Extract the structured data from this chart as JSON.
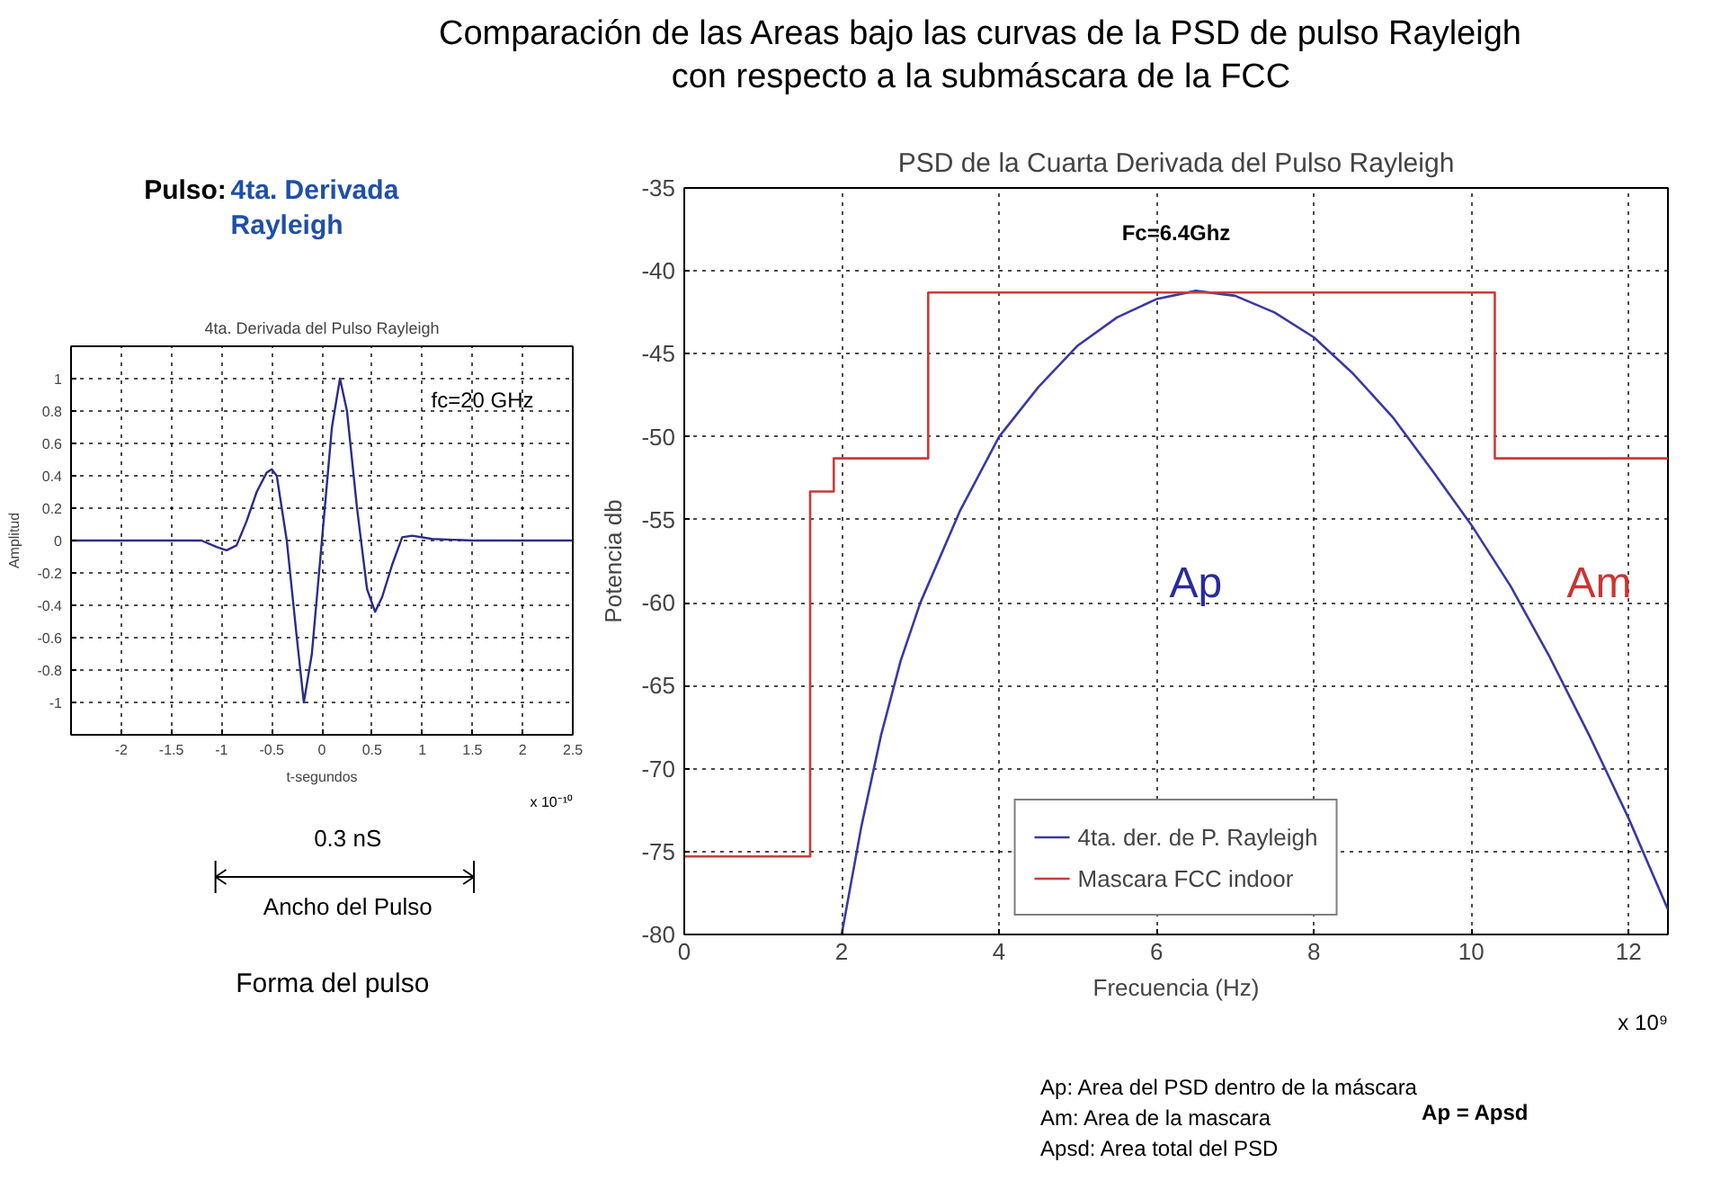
{
  "chart_data": [
    {
      "type": "other",
      "title": "Comparación de las Areas bajo las curvas de la PSD de pulso Rayleigh\ncon respecto a la submáscara de la FCC"
    },
    {
      "type": "other",
      "annotations": [
        "Pulso:",
        "4ta. Derivada\nRayleigh"
      ]
    },
    {
      "type": "line",
      "title": "4ta. Derivada del Pulso Rayleigh",
      "xlabel": "t-segundos",
      "ylabel": "Amplitud",
      "xlim": [
        -2.5,
        2.5
      ],
      "xticks": [
        -2,
        -1.5,
        -1,
        -0.5,
        0,
        0.5,
        1,
        1.5,
        2,
        2.5
      ],
      "ylim": [
        -1.2,
        1.2
      ],
      "yticks": [
        -1,
        -0.8,
        -0.6,
        -0.4,
        -0.2,
        0,
        0.2,
        0.4,
        0.6,
        0.8,
        1
      ],
      "grid": true,
      "annotations": [
        "fc=20 GHz",
        "x 10⁻¹⁰"
      ],
      "series": [
        {
          "color": "#2c2c88",
          "x": [
            -2.5,
            -1.2,
            -1.05,
            -0.95,
            -0.85,
            -0.75,
            -0.65,
            -0.55,
            -0.5,
            -0.45,
            -0.35,
            -0.25,
            -0.18,
            -0.1,
            0,
            0.1,
            0.18,
            0.25,
            0.35,
            0.45,
            0.53,
            0.6,
            0.7,
            0.8,
            0.9,
            1.1,
            1.5,
            2.5
          ],
          "values": [
            0,
            0,
            -0.04,
            -0.06,
            -0.03,
            0.12,
            0.3,
            0.42,
            0.44,
            0.4,
            0.0,
            -0.6,
            -1.0,
            -0.7,
            0,
            0.7,
            1.0,
            0.8,
            0.2,
            -0.3,
            -0.44,
            -0.35,
            -0.15,
            0.02,
            0.03,
            0.01,
            0,
            0
          ]
        }
      ]
    },
    {
      "type": "other",
      "annotations": [
        "0.3 nS",
        "Ancho del Pulso",
        "Forma del pulso"
      ]
    },
    {
      "type": "line",
      "title": "PSD de la Cuarta Derivada del Pulso Rayleigh",
      "xlabel": "Frecuencia (Hz)",
      "ylabel": "Potencia db",
      "xlim": [
        0,
        12.5
      ],
      "xticks": [
        0,
        2,
        4,
        6,
        8,
        10,
        12
      ],
      "ylim": [
        -80,
        -35
      ],
      "yticks": [
        -80,
        -75,
        -70,
        -65,
        -60,
        -55,
        -50,
        -45,
        -40,
        -35
      ],
      "grid": true,
      "legend": "bottom",
      "annotations": [
        "Fc=6.4Ghz",
        "Ap",
        "Am",
        "x 10⁹"
      ],
      "series": [
        {
          "name": "4ta. der. de P. Rayleigh",
          "color": "#3a3a9e",
          "x": [
            2,
            2.25,
            2.5,
            2.75,
            3,
            3.5,
            4,
            4.5,
            5,
            5.5,
            6,
            6.5,
            7,
            7.5,
            8,
            8.5,
            9,
            9.5,
            10,
            10.5,
            11,
            11.5,
            12,
            12.5
          ],
          "values": [
            -80,
            -73.5,
            -68,
            -63.5,
            -60,
            -54.5,
            -50,
            -47,
            -44.5,
            -42.8,
            -41.7,
            -41.2,
            -41.5,
            -42.5,
            -44,
            -46.2,
            -48.8,
            -52,
            -55.3,
            -59,
            -63.3,
            -68,
            -73,
            -78.5
          ]
        },
        {
          "name": "Mascara FCC indoor",
          "type": "step",
          "color": "#cc3a3a",
          "x": [
            0,
            1.6,
            1.9,
            3.1,
            10.3,
            12.5
          ],
          "values": [
            -75.3,
            -53.3,
            -51.3,
            -41.3,
            -51.3,
            -51.3
          ]
        }
      ]
    },
    {
      "type": "other",
      "annotations": [
        "Ap: Area del PSD dentro de la máscara",
        "Am: Area de la mascara",
        "Apsd: Area total del PSD",
        "Ap = Apsd"
      ]
    }
  ]
}
